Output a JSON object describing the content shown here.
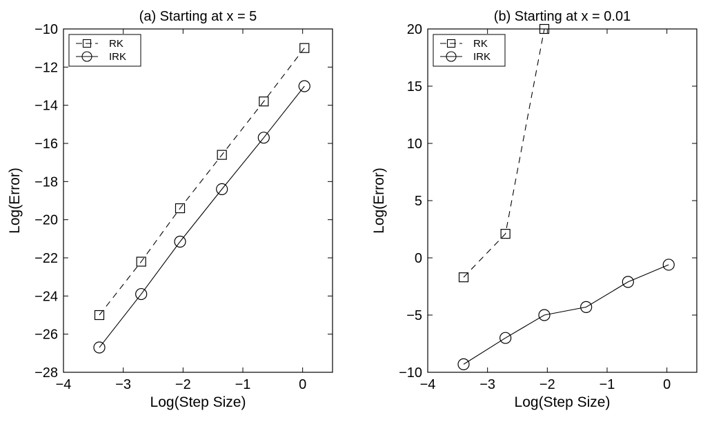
{
  "chart_data": [
    {
      "type": "line",
      "title": "(a) Starting at x = 5",
      "xlabel": "Log(Step Size)",
      "ylabel": "Log(Error)",
      "xlim": [
        -4,
        0.5
      ],
      "ylim": [
        -28,
        -10
      ],
      "xticks": [
        -4,
        -3,
        -2,
        -1,
        0
      ],
      "yticks": [
        -28,
        -26,
        -24,
        -22,
        -20,
        -18,
        -16,
        -14,
        -12,
        -10
      ],
      "grid": false,
      "legend_position": "top-left",
      "series": [
        {
          "name": "RK",
          "marker": "square",
          "line_style": "dashed",
          "x": [
            -3.4,
            -2.7,
            -2.05,
            -1.35,
            -0.65,
            0.03
          ],
          "y": [
            -25.0,
            -22.2,
            -19.4,
            -16.6,
            -13.8,
            -11.0
          ]
        },
        {
          "name": "IRK",
          "marker": "circle",
          "line_style": "solid",
          "x": [
            -3.4,
            -2.7,
            -2.05,
            -1.35,
            -0.65,
            0.03
          ],
          "y": [
            -26.7,
            -23.9,
            -21.15,
            -18.4,
            -15.7,
            -13.0
          ]
        }
      ]
    },
    {
      "type": "line",
      "title": "(b) Starting at x = 0.01",
      "xlabel": "Log(Step Size)",
      "ylabel": "Log(Error)",
      "xlim": [
        -4,
        0.5
      ],
      "ylim": [
        -10,
        20
      ],
      "xticks": [
        -4,
        -3,
        -2,
        -1,
        0
      ],
      "yticks": [
        -10,
        -5,
        0,
        5,
        10,
        15,
        20
      ],
      "grid": false,
      "legend_position": "top-left",
      "series": [
        {
          "name": "RK",
          "marker": "square",
          "line_style": "dashed",
          "x": [
            -3.4,
            -2.7,
            -2.05
          ],
          "y": [
            -1.7,
            2.1,
            20.0
          ]
        },
        {
          "name": "IRK",
          "marker": "circle",
          "line_style": "solid",
          "x": [
            -3.4,
            -2.7,
            -2.05,
            -1.35,
            -0.65,
            0.03
          ],
          "y": [
            -9.3,
            -7.0,
            -5.0,
            -4.3,
            -2.1,
            -0.6
          ]
        }
      ]
    }
  ]
}
